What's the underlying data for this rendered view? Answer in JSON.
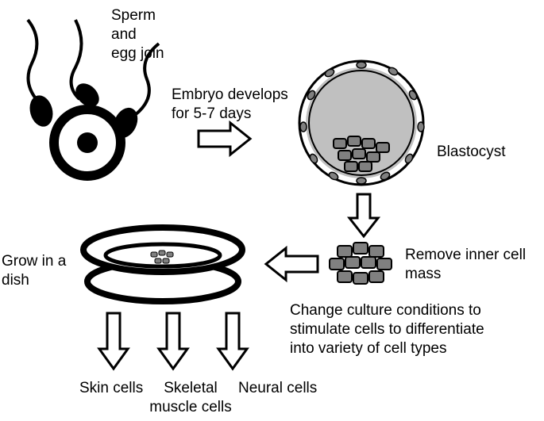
{
  "type": "flowchart",
  "background_color": "#ffffff",
  "stroke_color": "#000000",
  "fill_gray": "#c0c0c0",
  "label_fontsize": 19,
  "labels": {
    "sperm_egg": "Sperm\nand\negg join",
    "embryo": "Embryo develops\nfor 5-7 days",
    "blastocyst": "Blastocyst",
    "remove": "Remove inner cell\nmass",
    "grow": "Grow in a dish",
    "change": "Change culture conditions to\nstimulate cells to differentiate\ninto variety of cell types",
    "skin": "Skin cells",
    "skeletal": "Skeletal\nmuscle cells",
    "neural": "Neural cells"
  }
}
